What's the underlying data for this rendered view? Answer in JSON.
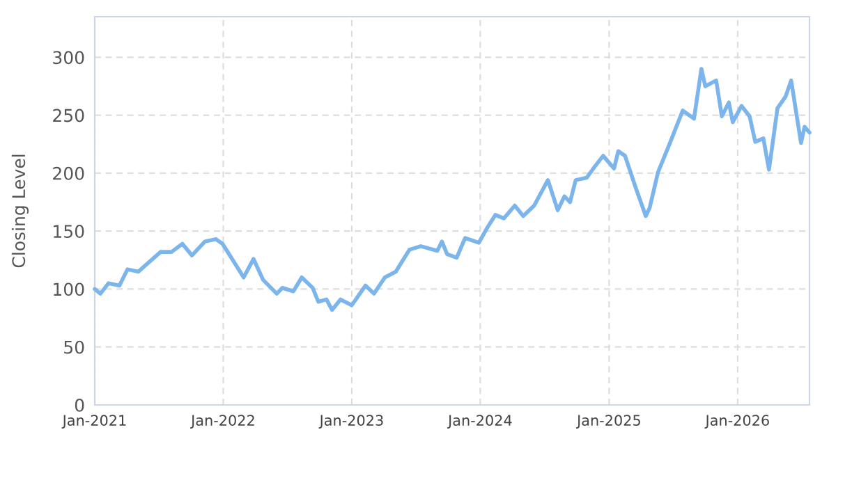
{
  "chart_data": {
    "type": "line",
    "ylabel": "Closing Level",
    "x": [
      "2021-01-01",
      "2021-01-17",
      "2021-02-09",
      "2021-03-12",
      "2021-04-04",
      "2021-05-05",
      "2021-07-07",
      "2021-08-07",
      "2021-09-07",
      "2021-10-04",
      "2021-11-10",
      "2021-12-11",
      "2021-12-30",
      "2022-01-28",
      "2022-02-28",
      "2022-03-28",
      "2022-04-24",
      "2022-06-02",
      "2022-06-18",
      "2022-07-19",
      "2022-08-12",
      "2022-09-12",
      "2022-09-28",
      "2022-10-21",
      "2022-11-06",
      "2022-11-30",
      "2023-01-01",
      "2023-02-09",
      "2023-03-05",
      "2023-04-05",
      "2023-05-06",
      "2023-06-14",
      "2023-07-16",
      "2023-09-01",
      "2023-09-14",
      "2023-09-29",
      "2023-10-26",
      "2023-11-19",
      "2023-12-28",
      "2024-01-21",
      "2024-02-13",
      "2024-03-08",
      "2024-04-08",
      "2024-05-02",
      "2024-06-02",
      "2024-07-11",
      "2024-08-08",
      "2024-08-27",
      "2024-09-12",
      "2024-09-28",
      "2024-10-29",
      "2024-11-22",
      "2024-12-15",
      "2025-01-15",
      "2025-01-27",
      "2025-02-15",
      "2025-03-18",
      "2025-04-15",
      "2025-04-26",
      "2025-05-20",
      "2025-06-20",
      "2025-07-29",
      "2025-08-30",
      "2025-09-20",
      "2025-10-01",
      "2025-11-01",
      "2025-11-17",
      "2025-12-07",
      "2025-12-18",
      "2026-01-12",
      "2026-02-04",
      "2026-02-20",
      "2026-03-15",
      "2026-03-31",
      "2026-04-24",
      "2026-05-17",
      "2026-06-02",
      "2026-06-18",
      "2026-06-30",
      "2026-07-10",
      "2026-07-24"
    ],
    "series": [
      {
        "color": "#7cb5ec",
        "values": [
          100,
          96,
          105,
          103,
          117,
          115,
          132,
          132,
          139,
          129,
          141,
          143,
          139,
          125,
          110,
          126,
          108,
          96,
          101,
          98,
          110,
          101,
          89,
          91,
          82,
          91,
          86,
          103,
          96,
          110,
          115,
          134,
          137,
          133,
          141,
          130,
          127,
          144,
          140,
          153,
          164,
          161,
          172,
          163,
          172,
          194,
          168,
          180,
          175,
          194,
          196,
          206,
          215,
          204,
          219,
          215,
          187,
          163,
          170,
          201,
          224,
          254,
          247,
          290,
          275,
          280,
          249,
          261,
          244,
          258,
          249,
          227,
          230,
          203,
          256,
          266,
          280,
          249,
          226,
          240,
          235
        ]
      }
    ],
    "xlim": [
      "2021-01-01",
      "2026-07-24"
    ],
    "xticks": [
      {
        "value": "2021-01-01",
        "label": "Jan-2021"
      },
      {
        "value": "2022-01-01",
        "label": "Jan-2022"
      },
      {
        "value": "2023-01-01",
        "label": "Jan-2023"
      },
      {
        "value": "2024-01-01",
        "label": "Jan-2024"
      },
      {
        "value": "2025-01-01",
        "label": "Jan-2025"
      },
      {
        "value": "2026-01-01",
        "label": "Jan-2026"
      }
    ],
    "ylim": [
      0,
      335
    ],
    "yticks": [
      0,
      50,
      100,
      150,
      200,
      250,
      300
    ],
    "grid": true,
    "legend": false,
    "marker": "none",
    "line_style": "solid"
  }
}
